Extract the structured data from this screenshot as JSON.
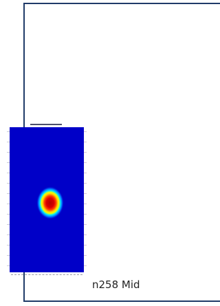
{
  "panel": {
    "caption": "n258 Mid"
  },
  "heatmap": {
    "colors": {
      "background": "#0000c8",
      "frame": "#1f3a68",
      "hot": "#b40000",
      "warm": "#ff3a00",
      "yellow": "#f0ff00",
      "cyan": "#00e8ff",
      "mid_blue": "#0068ff"
    }
  }
}
